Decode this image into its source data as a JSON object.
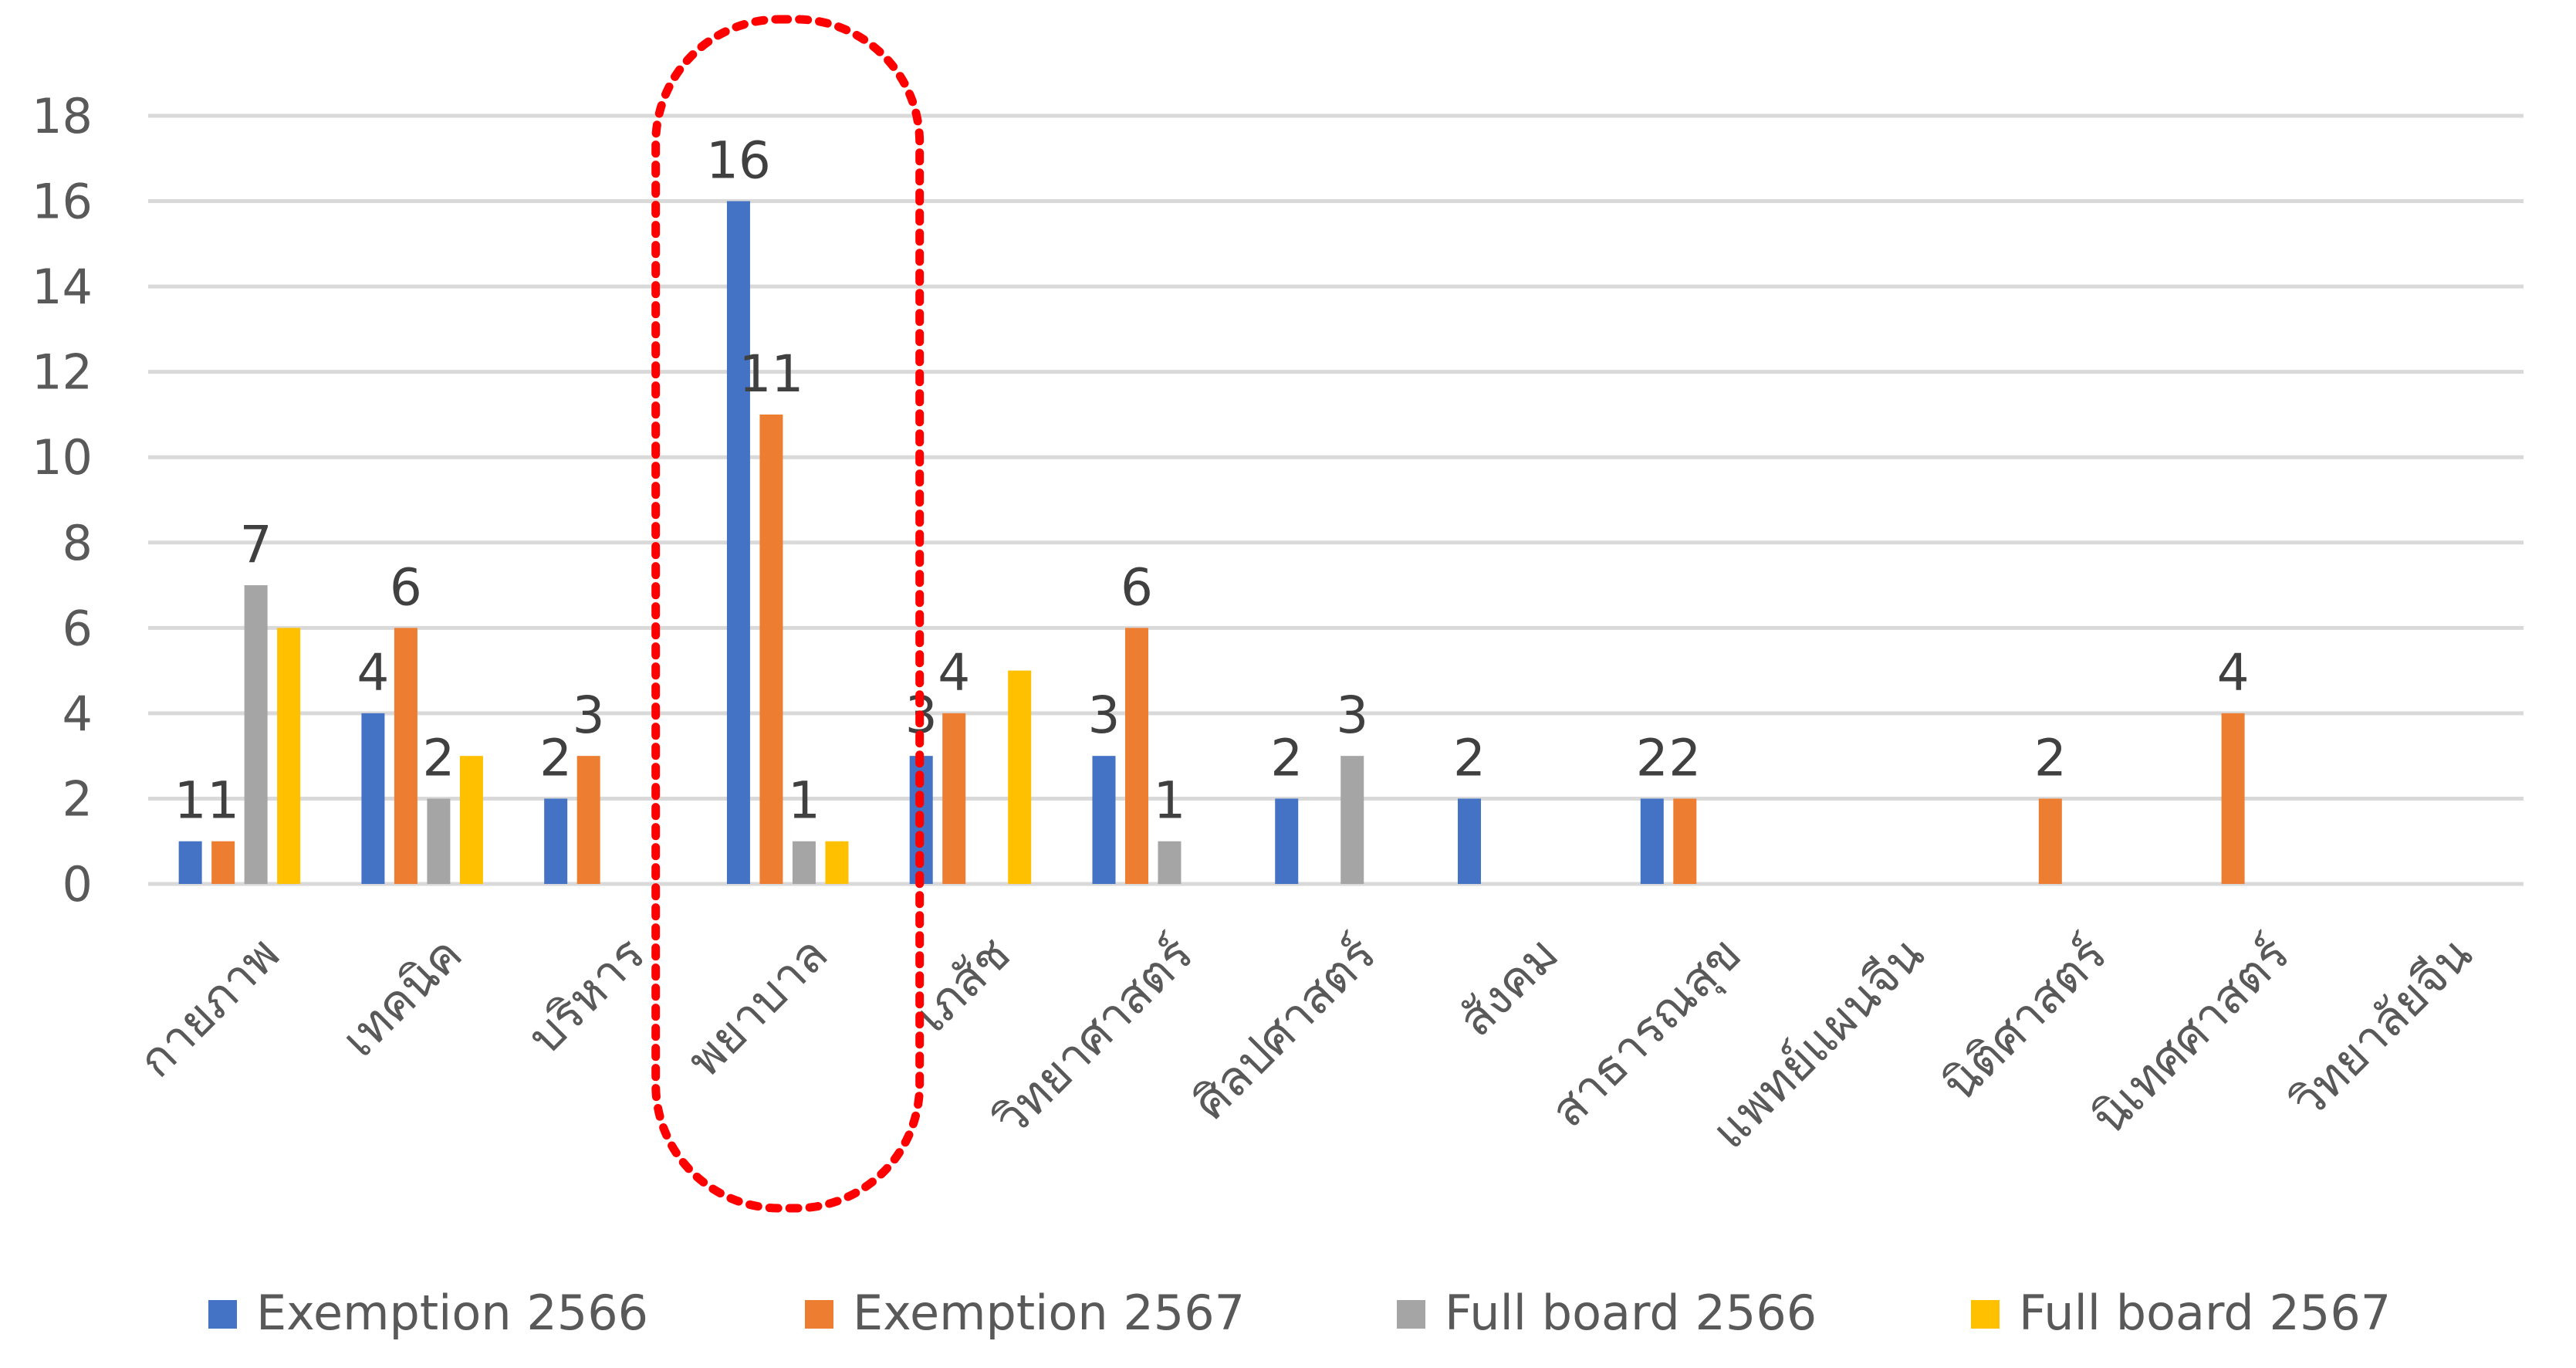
{
  "chart_data": {
    "type": "bar",
    "categories": [
      "กายภาพ",
      "เทคนิค",
      "บริหาร",
      "พยาบาล",
      "เภสัช",
      "วิทยาศาสตร์",
      "ศิลปศาสตร์",
      "สังคม",
      "สาธารณสุข",
      "แพทย์แผนจีน",
      "นิติศาสตร์",
      "นิเทศศาสตร์",
      "วิทยาลัยจีน"
    ],
    "series": [
      {
        "name": "Exemption 2566",
        "color": "#4472C4",
        "values": [
          1,
          4,
          2,
          16,
          3,
          3,
          2,
          2,
          2,
          0,
          0,
          0,
          0
        ]
      },
      {
        "name": "Exemption 2567",
        "color": "#ED7D31",
        "values": [
          1,
          6,
          3,
          11,
          4,
          6,
          0,
          0,
          2,
          0,
          2,
          4,
          0
        ]
      },
      {
        "name": "Full board 2566",
        "color": "#A5A5A5",
        "values": [
          7,
          2,
          0,
          1,
          0,
          1,
          3,
          0,
          0,
          0,
          0,
          0,
          0
        ]
      },
      {
        "name": "Full board 2567",
        "color": "#FFC000",
        "values": [
          6,
          3,
          0,
          1,
          5,
          0,
          0,
          0,
          0,
          0,
          0,
          0,
          0
        ]
      }
    ],
    "data_labels": [
      {
        "category": 0,
        "series": 0,
        "text": "1"
      },
      {
        "category": 0,
        "series": 1,
        "text": "1"
      },
      {
        "category": 0,
        "series": 2,
        "text": "7"
      },
      {
        "category": 1,
        "series": 0,
        "text": "4"
      },
      {
        "category": 1,
        "series": 1,
        "text": "6"
      },
      {
        "category": 1,
        "series": 2,
        "text": "2"
      },
      {
        "category": 2,
        "series": 0,
        "text": "2"
      },
      {
        "category": 2,
        "series": 1,
        "text": "3"
      },
      {
        "category": 3,
        "series": 0,
        "text": "16"
      },
      {
        "category": 3,
        "series": 1,
        "text": "11"
      },
      {
        "category": 3,
        "series": 2,
        "text": "1"
      },
      {
        "category": 4,
        "series": 0,
        "text": "3"
      },
      {
        "category": 4,
        "series": 1,
        "text": "4"
      },
      {
        "category": 5,
        "series": 0,
        "text": "3"
      },
      {
        "category": 5,
        "series": 1,
        "text": "6"
      },
      {
        "category": 5,
        "series": 2,
        "text": "1"
      },
      {
        "category": 6,
        "series": 0,
        "text": "2"
      },
      {
        "category": 6,
        "series": 2,
        "text": "3"
      },
      {
        "category": 7,
        "series": 0,
        "text": "2"
      },
      {
        "category": 8,
        "series": 0,
        "text": "2"
      },
      {
        "category": 8,
        "series": 1,
        "text": "2"
      },
      {
        "category": 10,
        "series": 1,
        "text": "2"
      },
      {
        "category": 11,
        "series": 1,
        "text": "4"
      }
    ],
    "yticks": [
      "0",
      "2",
      "4",
      "6",
      "8",
      "10",
      "12",
      "14",
      "16",
      "18"
    ],
    "ylim": [
      0,
      18
    ],
    "grid": true,
    "legend_position": "bottom",
    "highlight": {
      "category": 3,
      "style": "red dotted rounded outline"
    },
    "title": "",
    "xlabel": "",
    "ylabel": ""
  }
}
